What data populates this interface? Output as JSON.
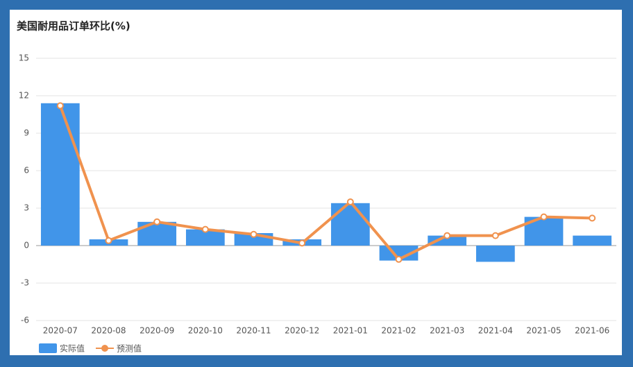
{
  "chart_data": {
    "type": "bar-line",
    "title": "美国耐用品订单环比(%)",
    "categories": [
      "2020-07",
      "2020-08",
      "2020-09",
      "2020-10",
      "2020-11",
      "2020-12",
      "2021-01",
      "2021-02",
      "2021-03",
      "2021-04",
      "2021-05",
      "2021-06"
    ],
    "series": [
      {
        "name": "实际值",
        "type": "bar",
        "color": "#4195e9",
        "values": [
          11.4,
          0.5,
          1.9,
          1.3,
          1.0,
          0.5,
          3.4,
          -1.2,
          0.8,
          -1.3,
          2.3,
          0.8
        ]
      },
      {
        "name": "预测值",
        "type": "line",
        "color": "#f0924e",
        "values": [
          11.2,
          0.4,
          1.9,
          1.3,
          0.9,
          0.2,
          3.5,
          -1.1,
          0.8,
          0.8,
          2.3,
          2.2
        ]
      }
    ],
    "ylim": [
      -6,
      15
    ],
    "yticks": [
      -6,
      -3,
      0,
      3,
      6,
      9,
      12,
      15
    ],
    "grid": true
  }
}
